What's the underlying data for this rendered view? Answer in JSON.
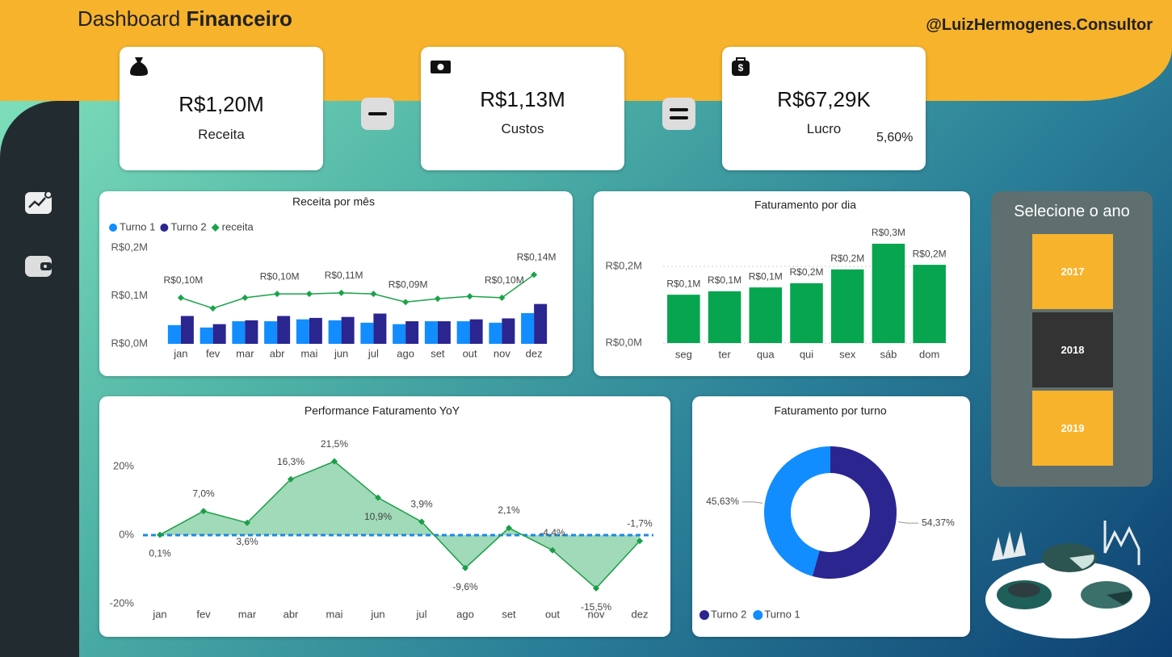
{
  "header": {
    "title_light": "Dashboard",
    "title_bold": "Financeiro",
    "handle": "@LuizHermogenes.Consultor"
  },
  "kpis": [
    {
      "value": "R$1,20M",
      "label": "Receita"
    },
    {
      "value": "R$1,13M",
      "label": "Custos"
    },
    {
      "value": "R$67,29K",
      "label": "Lucro",
      "margin": "5,60%"
    }
  ],
  "year_selector": {
    "title": "Selecione o ano",
    "options": [
      "2017",
      "2018",
      "2019"
    ],
    "selected": "2018"
  },
  "chart_data": [
    {
      "type": "combo",
      "title": "Receita por mês",
      "categories": [
        "jan",
        "fev",
        "mar",
        "abr",
        "mai",
        "jun",
        "jul",
        "ago",
        "set",
        "out",
        "nov",
        "dez"
      ],
      "series": [
        {
          "name": "Turno 1",
          "type": "bar",
          "color": "#118dff",
          "values": [
            0.039,
            0.034,
            0.047,
            0.047,
            0.051,
            0.049,
            0.044,
            0.041,
            0.047,
            0.047,
            0.044,
            0.064
          ]
        },
        {
          "name": "Turno 2",
          "type": "bar",
          "color": "#2b2590",
          "values": [
            0.058,
            0.041,
            0.049,
            0.058,
            0.054,
            0.056,
            0.063,
            0.047,
            0.047,
            0.051,
            0.053,
            0.083
          ]
        },
        {
          "name": "receita",
          "type": "line",
          "color": "#1aa34a",
          "values": [
            0.096,
            0.074,
            0.096,
            0.104,
            0.104,
            0.106,
            0.104,
            0.087,
            0.094,
            0.099,
            0.096,
            0.144
          ],
          "value_labels": [
            "R$0,10M",
            null,
            null,
            "R$0,10M",
            null,
            "R$0,11M",
            null,
            "R$0,09M",
            null,
            null,
            "R$0,10M",
            "R$0,14M"
          ]
        }
      ],
      "ylim": [
        0,
        0.2
      ],
      "yticks": [
        {
          "value": 0,
          "label": "R$0,0M"
        },
        {
          "value": 0.1,
          "label": "R$0,1M"
        },
        {
          "value": 0.2,
          "label": "R$0,2M"
        }
      ],
      "grid": false
    },
    {
      "type": "bar",
      "title": "Faturamento por dia",
      "categories": [
        "seg",
        "ter",
        "qua",
        "qui",
        "sex",
        "sáb",
        "dom"
      ],
      "values": [
        0.126,
        0.135,
        0.145,
        0.156,
        0.192,
        0.259,
        0.204
      ],
      "value_labels": [
        "R$0,1M",
        "R$0,1M",
        "R$0,1M",
        "R$0,2M",
        "R$0,2M",
        "R$0,3M",
        "R$0,2M"
      ],
      "color": "#07a550",
      "ylim": [
        0,
        0.3
      ],
      "yticks": [
        {
          "value": 0,
          "label": "R$0,0M"
        },
        {
          "value": 0.2,
          "label": "R$0,2M"
        }
      ],
      "grid": true
    },
    {
      "type": "area",
      "title": "Performance Faturamento YoY",
      "categories": [
        "jan",
        "fev",
        "mar",
        "abr",
        "mai",
        "jun",
        "jul",
        "ago",
        "set",
        "out",
        "nov",
        "dez"
      ],
      "values": [
        0.1,
        7.0,
        3.6,
        16.3,
        21.5,
        10.9,
        3.9,
        -9.6,
        2.1,
        -4.4,
        -15.5,
        -1.7
      ],
      "value_labels": [
        "0,1%",
        "7,0%",
        "3,6%",
        "16,3%",
        "21,5%",
        "10,9%",
        "3,9%",
        "-9,6%",
        "2,1%",
        "-4,4%",
        "-15,5%",
        "-1,7%"
      ],
      "color": "#1a9e48",
      "fill": "#8fd3ab",
      "ylim": [
        -23,
        29
      ],
      "yticks": [
        {
          "value": -20,
          "label": "-20%"
        },
        {
          "value": 0,
          "label": "0%"
        },
        {
          "value": 20,
          "label": "20%"
        }
      ],
      "grid": false
    },
    {
      "type": "donut",
      "title": "Faturamento por turno",
      "categories": [
        "Turno 2",
        "Turno 1"
      ],
      "values": [
        54.37,
        45.63
      ],
      "value_labels": [
        "54,37%",
        "45,63%"
      ],
      "colors": [
        "#2b2590",
        "#118dff"
      ]
    }
  ]
}
